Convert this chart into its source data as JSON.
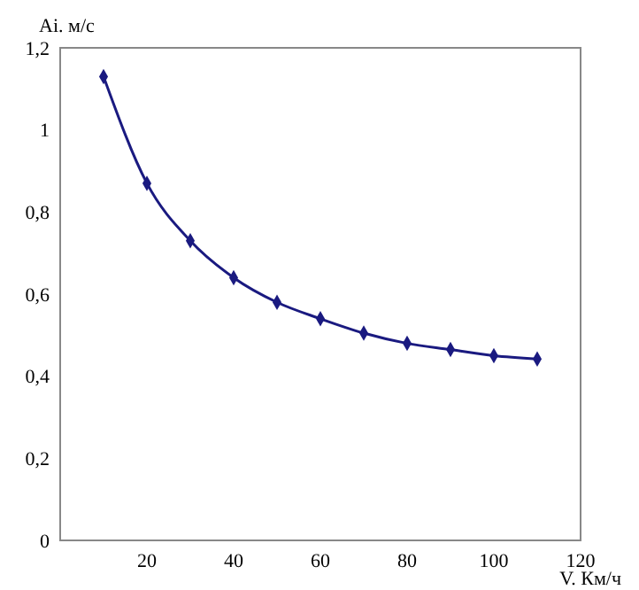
{
  "chart_data": {
    "type": "line",
    "xlabel": "V. Км/ч",
    "ylabel": "Ai. м/с",
    "x": [
      10,
      20,
      30,
      40,
      50,
      60,
      70,
      80,
      90,
      100,
      110
    ],
    "series": [
      {
        "color": "#1a1a80",
        "values": [
          1.13,
          0.87,
          0.73,
          0.64,
          0.58,
          0.54,
          0.505,
          0.48,
          0.465,
          0.45,
          0.442
        ]
      }
    ],
    "xlim": [
      0,
      120
    ],
    "xticks": [
      20,
      40,
      60,
      80,
      100,
      120
    ],
    "ylim": [
      0,
      1.2
    ],
    "yticks": [
      0,
      {
        "value": 0.2,
        "label": "0,2"
      },
      {
        "value": 0.4,
        "label": "0,4"
      },
      {
        "value": 0.6,
        "label": "0,6"
      },
      {
        "value": 0.8,
        "label": "0,8"
      },
      1,
      {
        "value": 1.2,
        "label": "1,2"
      }
    ],
    "grid": false,
    "marker": "diamond",
    "line_style": "solid"
  }
}
